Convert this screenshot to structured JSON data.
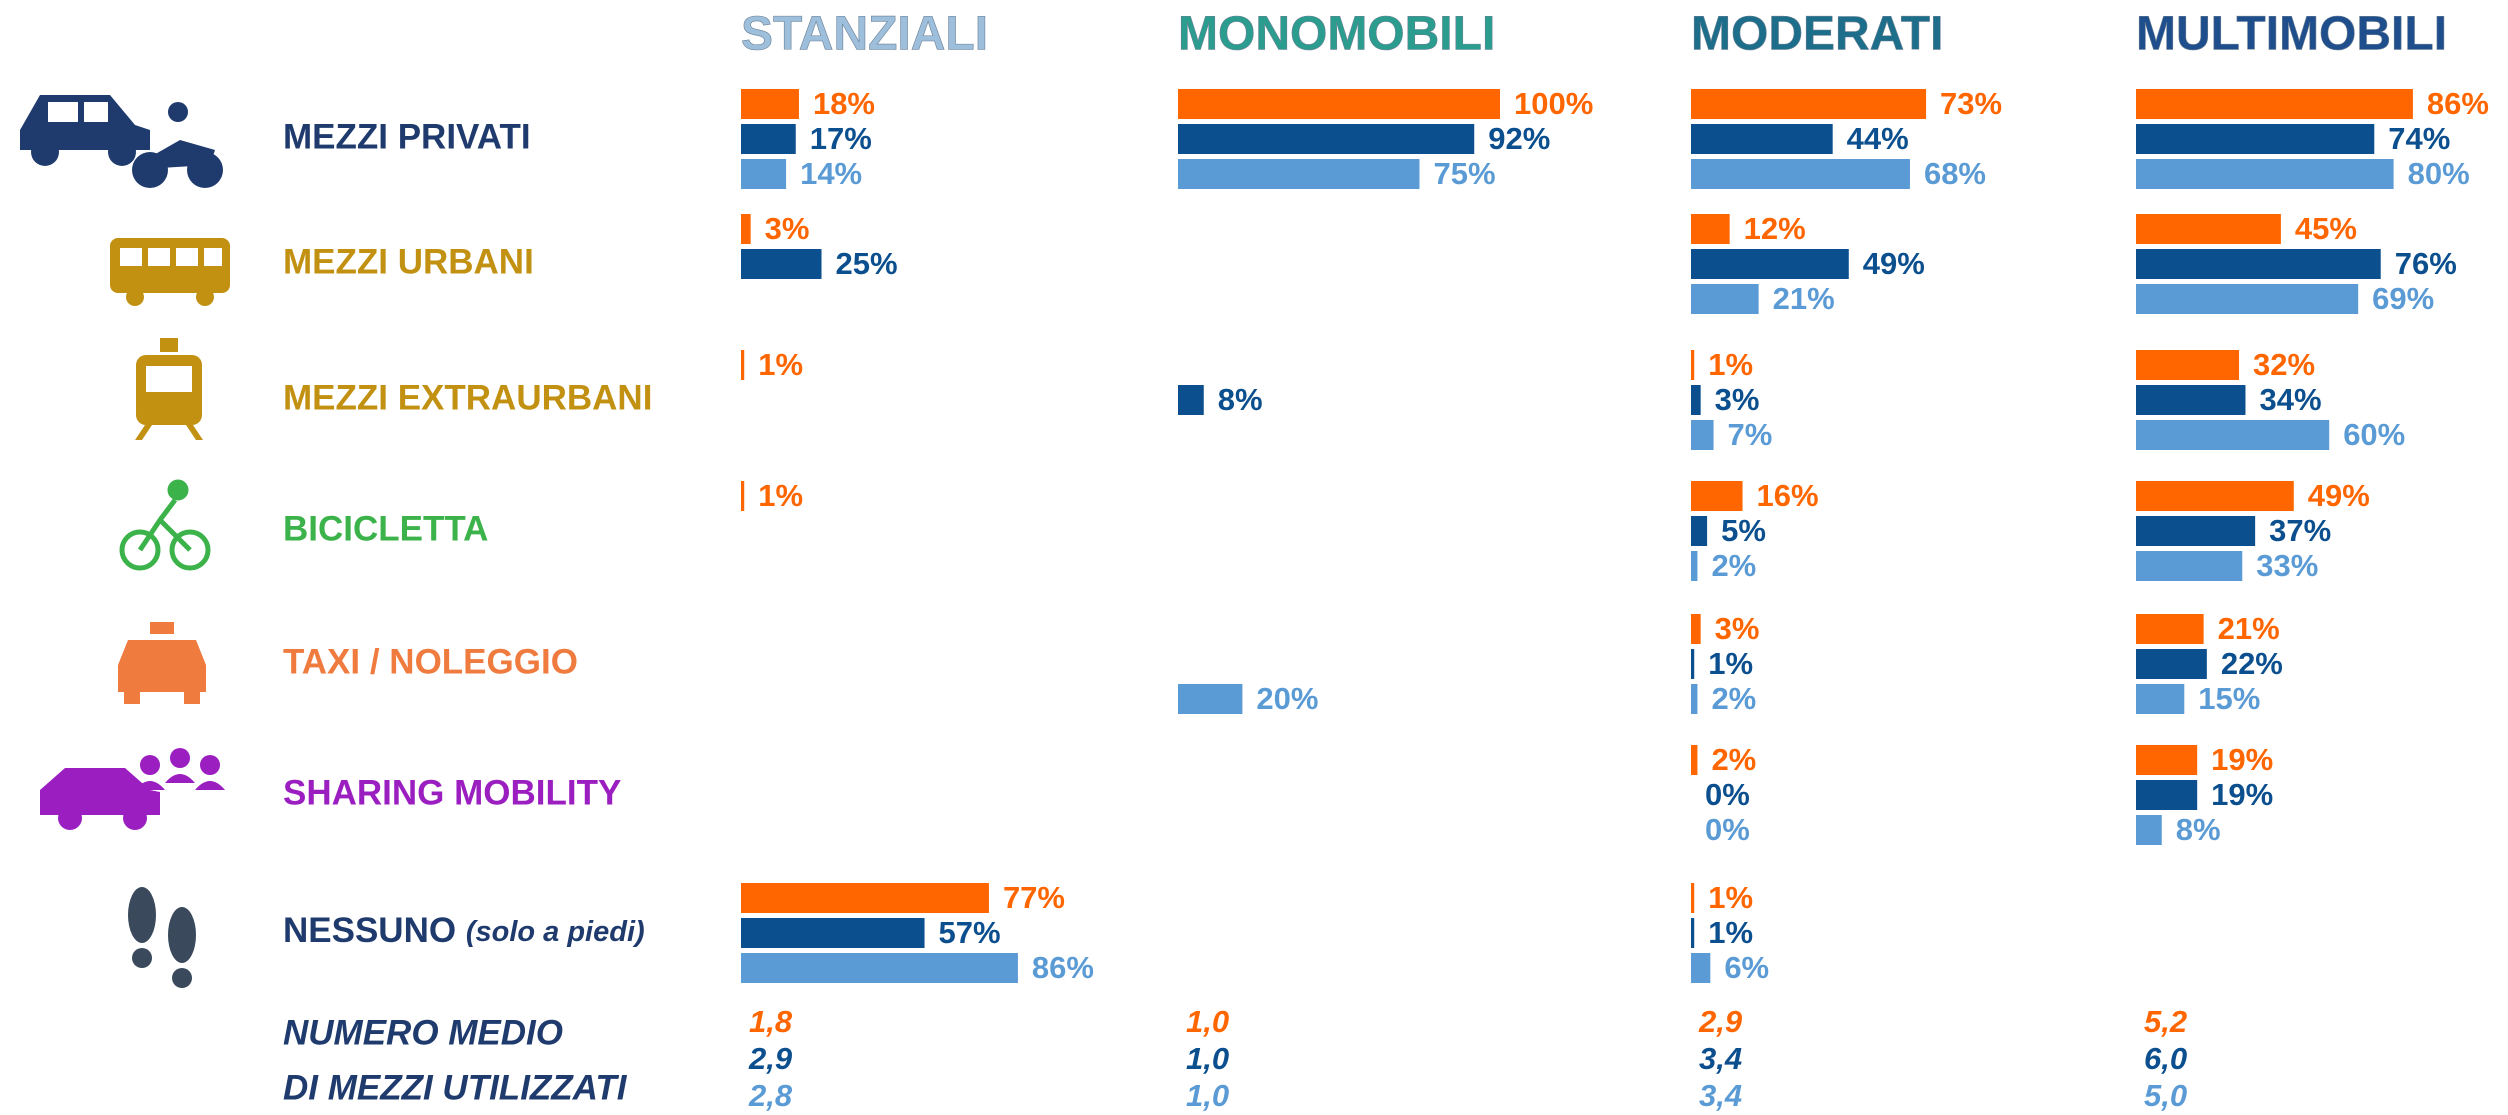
{
  "chart_data": {
    "type": "bar",
    "categories": [
      "MEZZI PRIVATI",
      "MEZZI URBANI",
      "MEZZI EXTRAURBANI",
      "BICICLETTA",
      "TAXI / NOLEGGIO",
      "SHARING MOBILITY",
      "NESSUNO (solo a piedi)"
    ],
    "category_colors": [
      "#1f3b6e",
      "#c29112",
      "#c29112",
      "#3cb34a",
      "#f07b3f",
      "#9b1fc0",
      "#1f3b6e"
    ],
    "average_label": [
      "NUMERO MEDIO",
      "DI MEZZI UTILIZZATI"
    ],
    "xlim": [
      0,
      100
    ],
    "panels": [
      {
        "title": "STANZIALI",
        "title_color": "#9dbfdc",
        "series": [
          {
            "color": "#ff6600",
            "values": [
              18,
              3,
              1,
              1,
              null,
              null,
              77
            ],
            "value_labels": [
              "18%",
              "3%",
              "1%",
              "1%",
              null,
              null,
              "77%"
            ]
          },
          {
            "color": "#0b4f8f",
            "values": [
              17,
              25,
              null,
              null,
              null,
              null,
              57
            ],
            "value_labels": [
              "17%",
              "25%",
              null,
              null,
              null,
              null,
              "57%"
            ]
          },
          {
            "color": "#5b9bd5",
            "values": [
              14,
              null,
              null,
              null,
              null,
              null,
              86
            ],
            "value_labels": [
              "14%",
              null,
              null,
              null,
              null,
              null,
              "86%"
            ]
          }
        ],
        "average": {
          "values": [
            1.8,
            2.9,
            2.8
          ],
          "value_labels": [
            "1,8",
            "2,9",
            "2,8"
          ]
        }
      },
      {
        "title": "MONOMOBILI",
        "title_color": "#2a9d8f",
        "series": [
          {
            "color": "#ff6600",
            "values": [
              100,
              null,
              null,
              null,
              null,
              null,
              null
            ],
            "value_labels": [
              "100%",
              null,
              null,
              null,
              null,
              null,
              null
            ]
          },
          {
            "color": "#0b4f8f",
            "values": [
              92,
              null,
              8,
              null,
              null,
              null,
              null
            ],
            "value_labels": [
              "92%",
              null,
              "8%",
              null,
              null,
              null,
              null
            ]
          },
          {
            "color": "#5b9bd5",
            "values": [
              75,
              null,
              null,
              null,
              20,
              null,
              null
            ],
            "value_labels": [
              "75%",
              null,
              null,
              null,
              "20%",
              null,
              null
            ]
          }
        ],
        "average": {
          "values": [
            1.0,
            1.0,
            1.0
          ],
          "value_labels": [
            "1,0",
            "1,0",
            "1,0"
          ]
        }
      },
      {
        "title": "MODERATI",
        "title_color": "#1d6e8a",
        "series": [
          {
            "color": "#ff6600",
            "values": [
              73,
              12,
              1,
              16,
              3,
              2,
              1
            ],
            "value_labels": [
              "73%",
              "12%",
              "1%",
              "16%",
              "3%",
              "2%",
              "1%"
            ]
          },
          {
            "color": "#0b4f8f",
            "values": [
              44,
              49,
              3,
              5,
              1,
              0,
              1
            ],
            "value_labels": [
              "44%",
              "49%",
              "3%",
              "5%",
              "1%",
              "0%",
              "1%"
            ]
          },
          {
            "color": "#5b9bd5",
            "values": [
              68,
              21,
              7,
              2,
              2,
              0,
              6
            ],
            "value_labels": [
              "68%",
              "21%",
              "7%",
              "2%",
              "2%",
              "0%",
              "6%"
            ]
          }
        ],
        "average": {
          "values": [
            2.9,
            3.4,
            3.4
          ],
          "value_labels": [
            "2,9",
            "3,4",
            "3,4"
          ]
        }
      },
      {
        "title": "MULTIMOBILI",
        "title_color": "#1f4e8c",
        "series": [
          {
            "color": "#ff6600",
            "values": [
              86,
              45,
              32,
              49,
              21,
              19,
              null
            ],
            "value_labels": [
              "86%",
              "45%",
              "32%",
              "49%",
              "21%",
              "19%",
              null
            ]
          },
          {
            "color": "#0b4f8f",
            "values": [
              74,
              76,
              34,
              37,
              22,
              19,
              null
            ],
            "value_labels": [
              "74%",
              "76%",
              "34%",
              "37%",
              "22%",
              "19%",
              null
            ]
          },
          {
            "color": "#5b9bd5",
            "values": [
              80,
              69,
              60,
              33,
              15,
              8,
              null
            ],
            "value_labels": [
              "80%",
              "69%",
              "60%",
              "33%",
              "15%",
              "8%",
              null
            ]
          }
        ],
        "average": {
          "values": [
            5.2,
            6.0,
            5.0
          ],
          "value_labels": [
            "5,2",
            "6,0",
            "5,0"
          ]
        }
      }
    ]
  }
}
